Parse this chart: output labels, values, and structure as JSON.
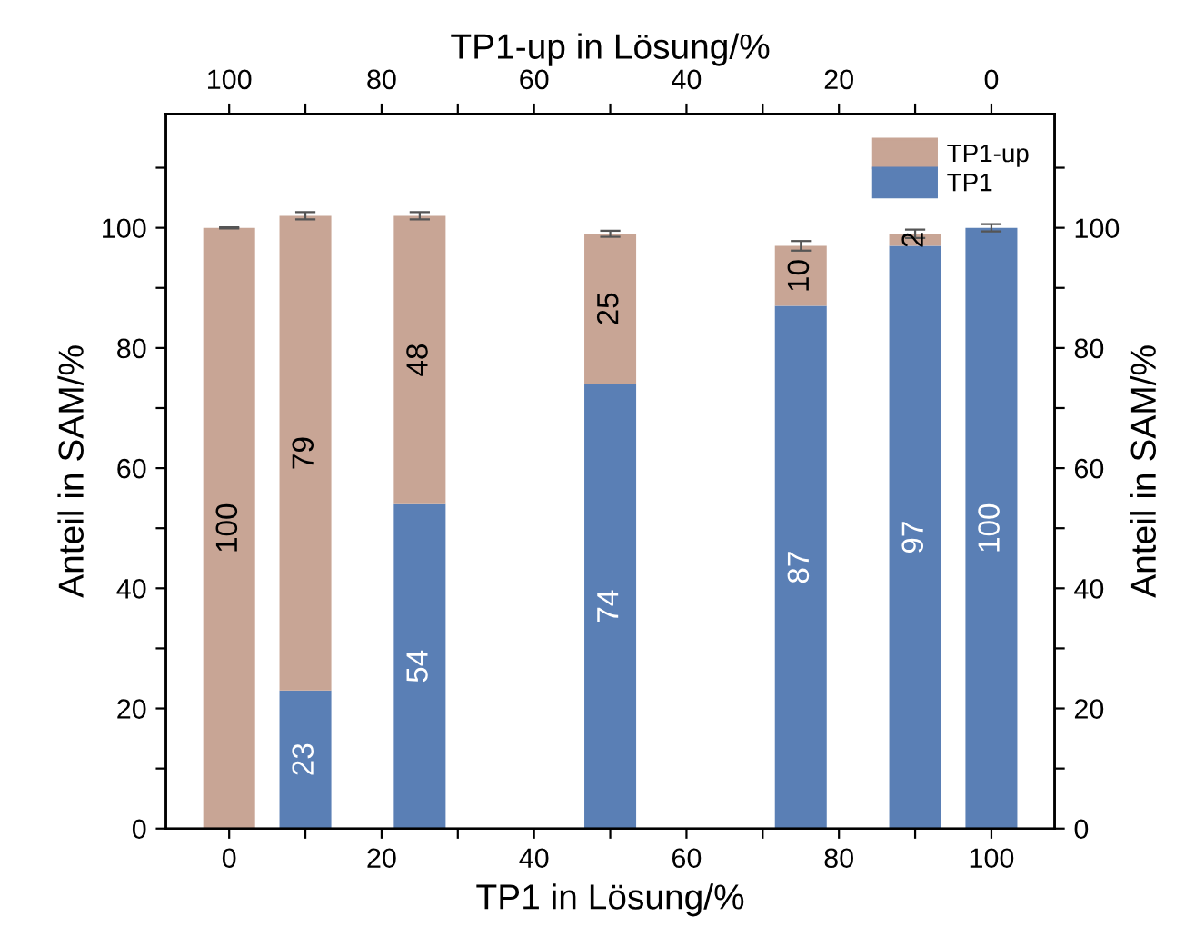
{
  "chart_data": {
    "type": "bar",
    "stacked": true,
    "x": [
      0,
      10,
      25,
      50,
      75,
      90,
      100
    ],
    "xlabel": "TP1 in Lösung/%",
    "x2label": "TP1-up in Lösung/%",
    "ylabel": "Anteil in SAM/%",
    "y2label": "Anteil in SAM/%",
    "series": [
      {
        "name": "TP1",
        "color": "#5a7fb5",
        "values": [
          0,
          23,
          54,
          74,
          87,
          97,
          100
        ],
        "value_labels": [
          null,
          "23",
          "54",
          "74",
          "87",
          "97",
          "100"
        ]
      },
      {
        "name": "TP1-up",
        "color": "#c8a595",
        "values": [
          100,
          79,
          48,
          25,
          10,
          2,
          0
        ],
        "value_labels": [
          "100",
          "79",
          "48",
          "25",
          "10",
          "2",
          null
        ],
        "errors": [
          0.1,
          0.6,
          0.6,
          0.5,
          0.8,
          0.7,
          0.6
        ]
      }
    ],
    "xlim": [
      -8.3,
      108.3
    ],
    "xticks": [
      0,
      {
        "value": 10,
        "label": null
      },
      20,
      {
        "value": 30,
        "label": null
      },
      40,
      {
        "value": 50,
        "label": null
      },
      60,
      {
        "value": 70,
        "label": null
      },
      80,
      {
        "value": 90,
        "label": null
      },
      100
    ],
    "x2lim": [
      108.3,
      -8.3
    ],
    "x2ticks": [
      100,
      {
        "value": 90,
        "label": null
      },
      80,
      {
        "value": 70,
        "label": null
      },
      60,
      {
        "value": 50,
        "label": null
      },
      40,
      {
        "value": 30,
        "label": null
      },
      20,
      {
        "value": 10,
        "label": null
      },
      0
    ],
    "ylim": [
      0,
      119
    ],
    "yticks": [
      0,
      {
        "value": 10,
        "label": null
      },
      20,
      {
        "value": 30,
        "label": null
      },
      40,
      {
        "value": 50,
        "label": null
      },
      60,
      {
        "value": 70,
        "label": null
      },
      80,
      {
        "value": 90,
        "label": null
      },
      100,
      {
        "value": 110,
        "label": null
      }
    ],
    "y2lim": [
      0,
      119
    ],
    "y2ticks": [
      0,
      {
        "value": 10,
        "label": null
      },
      20,
      {
        "value": 30,
        "label": null
      },
      40,
      {
        "value": 50,
        "label": null
      },
      60,
      {
        "value": 70,
        "label": null
      },
      80,
      {
        "value": 90,
        "label": null
      },
      100,
      {
        "value": 110,
        "label": null
      }
    ],
    "legend": "top right",
    "grid": false
  }
}
